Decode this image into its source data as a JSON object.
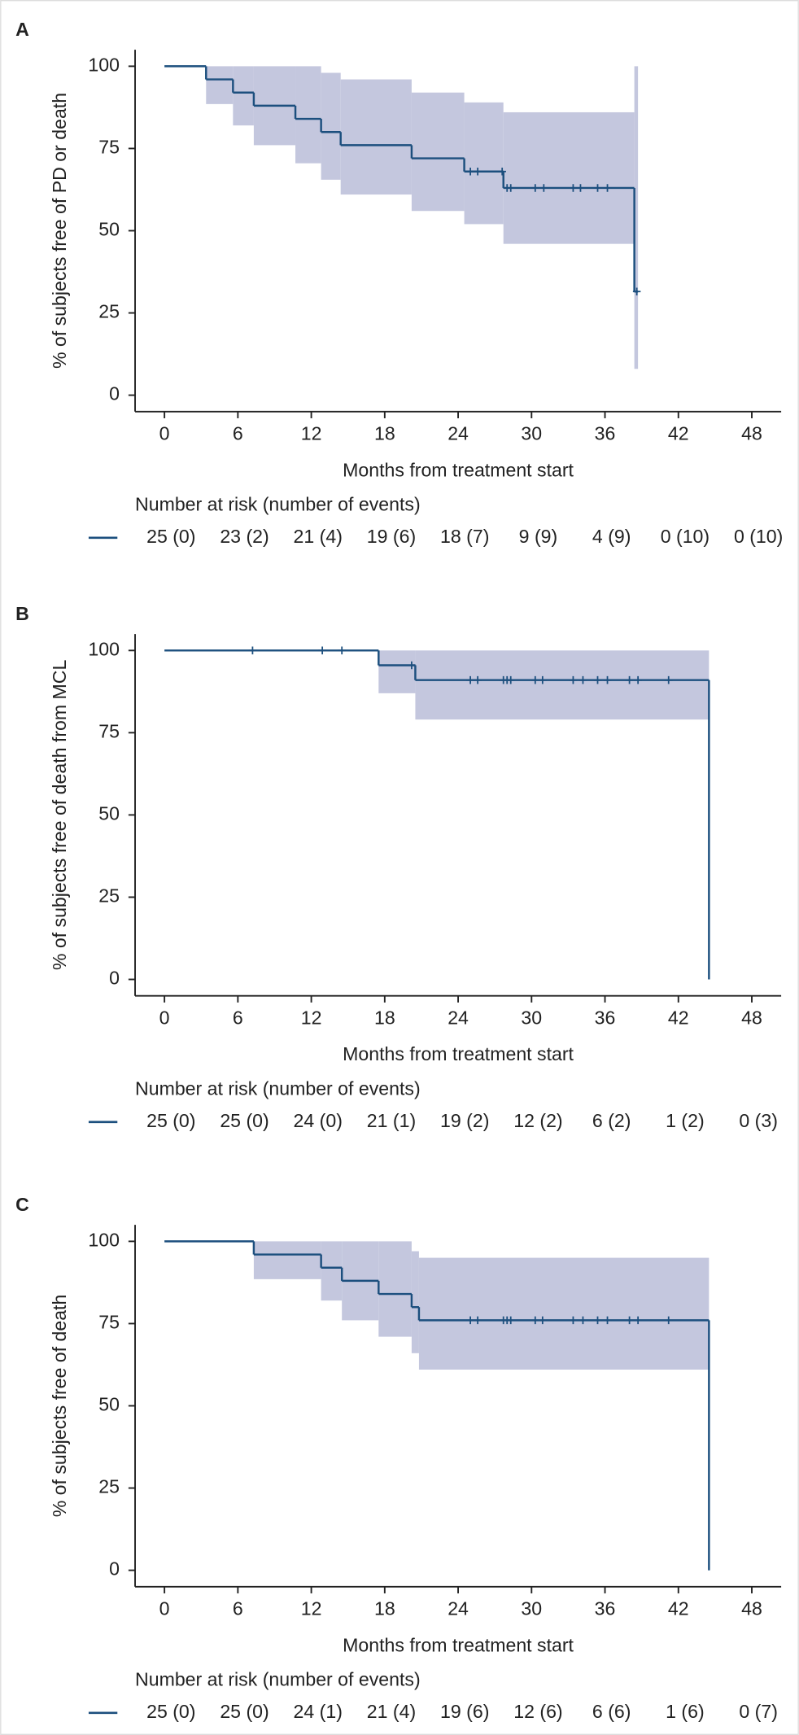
{
  "chart_data": [
    {
      "type": "step",
      "panel": "A",
      "y_label": "% of subjects free of PD or death",
      "x_label": "Months from treatment start",
      "xlim": [
        -2.4,
        50.4
      ],
      "ylim": [
        -5,
        105
      ],
      "xticks": [
        0,
        6,
        12,
        18,
        24,
        30,
        36,
        42,
        48
      ],
      "yticks": [
        0,
        25,
        50,
        75,
        100
      ],
      "color": "#1c4f7e",
      "ci_color": "#c4c7de",
      "x": [
        0,
        3.4,
        5.6,
        7.3,
        10.7,
        12.8,
        14.4,
        20.2,
        24.5,
        27.7,
        38.4
      ],
      "values": [
        100,
        96,
        92,
        88,
        84,
        80,
        76,
        72,
        68,
        63,
        31.5
      ],
      "ci_lower": [
        100,
        88.5,
        82,
        76,
        70.5,
        65.5,
        61,
        56,
        52,
        46,
        8
      ],
      "ci_upper": [
        100,
        100,
        100,
        100,
        100,
        98,
        96,
        92,
        89,
        86,
        100
      ],
      "x_end": 38.7,
      "censored": {
        "x": [
          25.0,
          25.6,
          27.6,
          28.0,
          28.3,
          30.3,
          31.0,
          33.4,
          34.0,
          35.4,
          36.2,
          38.6
        ],
        "values": [
          68,
          68,
          68,
          63,
          63,
          63,
          63,
          63,
          63,
          63,
          63,
          31.5
        ]
      },
      "risk_table": {
        "title": "Number at risk (number of events)",
        "labels": [
          "25 (0)",
          "23 (2)",
          "21 (4)",
          "19 (6)",
          "18 (7)",
          "9 (9)",
          "4 (9)",
          "0 (10)",
          "0 (10)"
        ]
      }
    },
    {
      "type": "step",
      "panel": "B",
      "y_label": "% of subjects free of death from MCL",
      "x_label": "Months from treatment start",
      "xlim": [
        -2.4,
        50.4
      ],
      "ylim": [
        -5,
        105
      ],
      "xticks": [
        0,
        6,
        12,
        18,
        24,
        30,
        36,
        42,
        48
      ],
      "yticks": [
        0,
        25,
        50,
        75,
        100
      ],
      "color": "#1c4f7e",
      "ci_color": "#c4c7de",
      "x": [
        0,
        17.5,
        20.5,
        44.5
      ],
      "values": [
        100,
        95.5,
        91,
        0
      ],
      "ci_lower": [
        100,
        87,
        79,
        0
      ],
      "ci_upper": [
        100,
        100,
        100,
        0
      ],
      "x_end": 44.5,
      "censored": {
        "x": [
          7.2,
          12.9,
          14.5,
          20.2,
          25.0,
          25.6,
          27.7,
          28.0,
          28.3,
          30.3,
          30.9,
          33.4,
          34.2,
          35.4,
          36.2,
          38.0,
          38.7,
          41.2
        ],
        "values": [
          100,
          100,
          100,
          95.5,
          91,
          91,
          91,
          91,
          91,
          91,
          91,
          91,
          91,
          91,
          91,
          91,
          91,
          91
        ]
      },
      "risk_table": {
        "title": "Number at risk (number of events)",
        "labels": [
          "25 (0)",
          "25 (0)",
          "24 (0)",
          "21 (1)",
          "19 (2)",
          "12 (2)",
          "6 (2)",
          "1 (2)",
          "0 (3)"
        ]
      }
    },
    {
      "type": "step",
      "panel": "C",
      "y_label": "% of subjects free of death",
      "x_label": "Months from treatment start",
      "xlim": [
        -2.4,
        50.4
      ],
      "ylim": [
        -5,
        105
      ],
      "xticks": [
        0,
        6,
        12,
        18,
        24,
        30,
        36,
        42,
        48
      ],
      "yticks": [
        0,
        25,
        50,
        75,
        100
      ],
      "color": "#1c4f7e",
      "ci_color": "#c4c7de",
      "x": [
        0,
        7.3,
        12.8,
        14.5,
        17.5,
        20.2,
        20.8,
        44.5
      ],
      "values": [
        100,
        96,
        92,
        88,
        84,
        80,
        76,
        0
      ],
      "ci_lower": [
        100,
        88.5,
        82,
        76,
        71,
        66,
        61,
        0
      ],
      "ci_upper": [
        100,
        100,
        100,
        100,
        100,
        97,
        95,
        0
      ],
      "x_end": 44.5,
      "censored": {
        "x": [
          25.0,
          25.6,
          27.7,
          28.0,
          28.3,
          30.3,
          30.9,
          33.4,
          34.2,
          35.4,
          36.2,
          38.0,
          38.7,
          41.2
        ],
        "values": [
          76,
          76,
          76,
          76,
          76,
          76,
          76,
          76,
          76,
          76,
          76,
          76,
          76,
          76
        ]
      },
      "risk_table": {
        "title": "Number at risk (number of events)",
        "labels": [
          "25 (0)",
          "25 (0)",
          "24 (1)",
          "21 (4)",
          "19 (6)",
          "12 (6)",
          "6 (6)",
          "1 (6)",
          "0 (7)"
        ]
      }
    }
  ]
}
